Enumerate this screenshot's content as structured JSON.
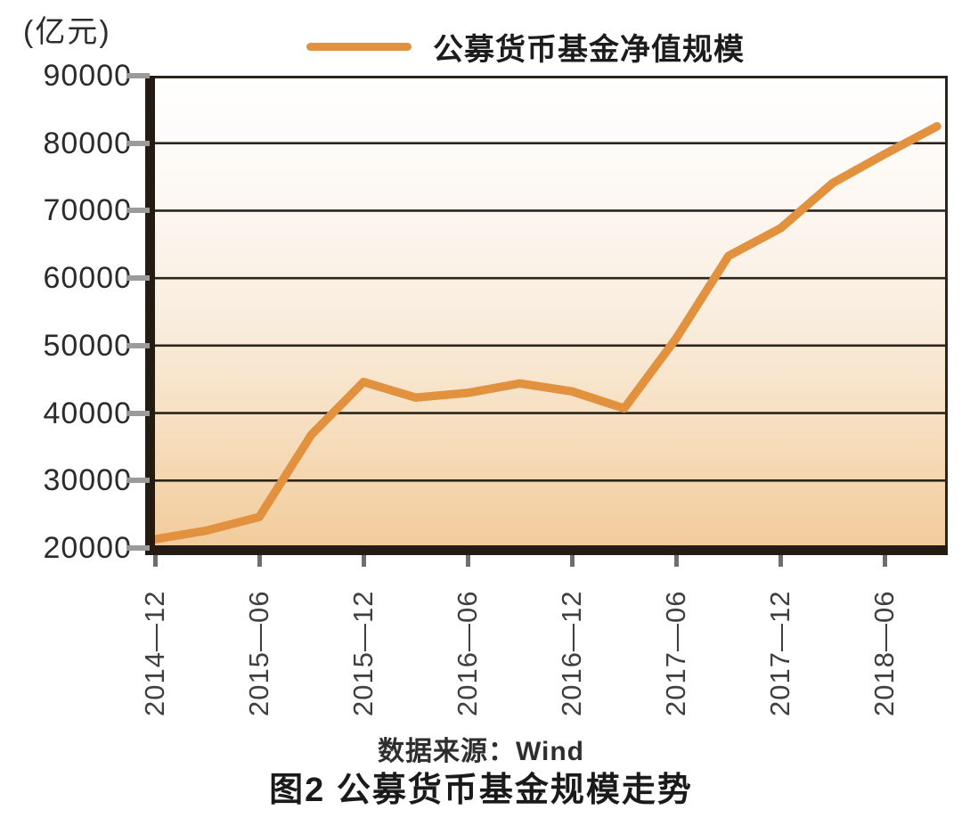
{
  "unit_label": "(亿元)",
  "legend": {
    "label": "公募货币基金净值规模",
    "line_color": "#E2913F"
  },
  "source": "数据来源：Wind",
  "title": "图2 公募货币基金规模走势",
  "chart_data": {
    "type": "line",
    "title": "图2 公募货币基金规模走势",
    "ylabel": "(亿元)",
    "x": [
      "2014-12",
      "2015-03",
      "2015-06",
      "2015-09",
      "2015-12",
      "2016-03",
      "2016-06",
      "2016-09",
      "2016-12",
      "2017-03",
      "2017-06",
      "2017-09",
      "2017-12",
      "2018-03",
      "2018-06",
      "2018-09"
    ],
    "series": [
      {
        "name": "公募货币基金净值规模",
        "color": "#E2913F",
        "values": [
          21300,
          22600,
          24600,
          36800,
          44600,
          42300,
          43000,
          44400,
          43200,
          40700,
          51100,
          63300,
          67400,
          74100,
          78400,
          82500
        ]
      }
    ],
    "x_tick_labels": [
      "2014—12",
      "2015—06",
      "2015—12",
      "2016—06",
      "2016—12",
      "2017—06",
      "2017—12",
      "2018—06"
    ],
    "x_tick_point_indices": [
      0,
      2,
      4,
      6,
      8,
      10,
      12,
      14
    ],
    "y_ticks": [
      20000,
      30000,
      40000,
      50000,
      60000,
      70000,
      80000,
      90000
    ],
    "ylim": [
      20000,
      90000
    ],
    "grid": "horizontal",
    "gridline_color": "#2b241b",
    "legend_position": "top",
    "plot_bg_gradient": {
      "stops": [
        "#FFFFFF",
        "#FDF8F3",
        "#F9EEDF",
        "#F6DCBA",
        "#F2CB9B"
      ],
      "offsets": [
        0,
        25,
        50,
        78,
        100
      ]
    },
    "source": "数据来源：Wind"
  }
}
